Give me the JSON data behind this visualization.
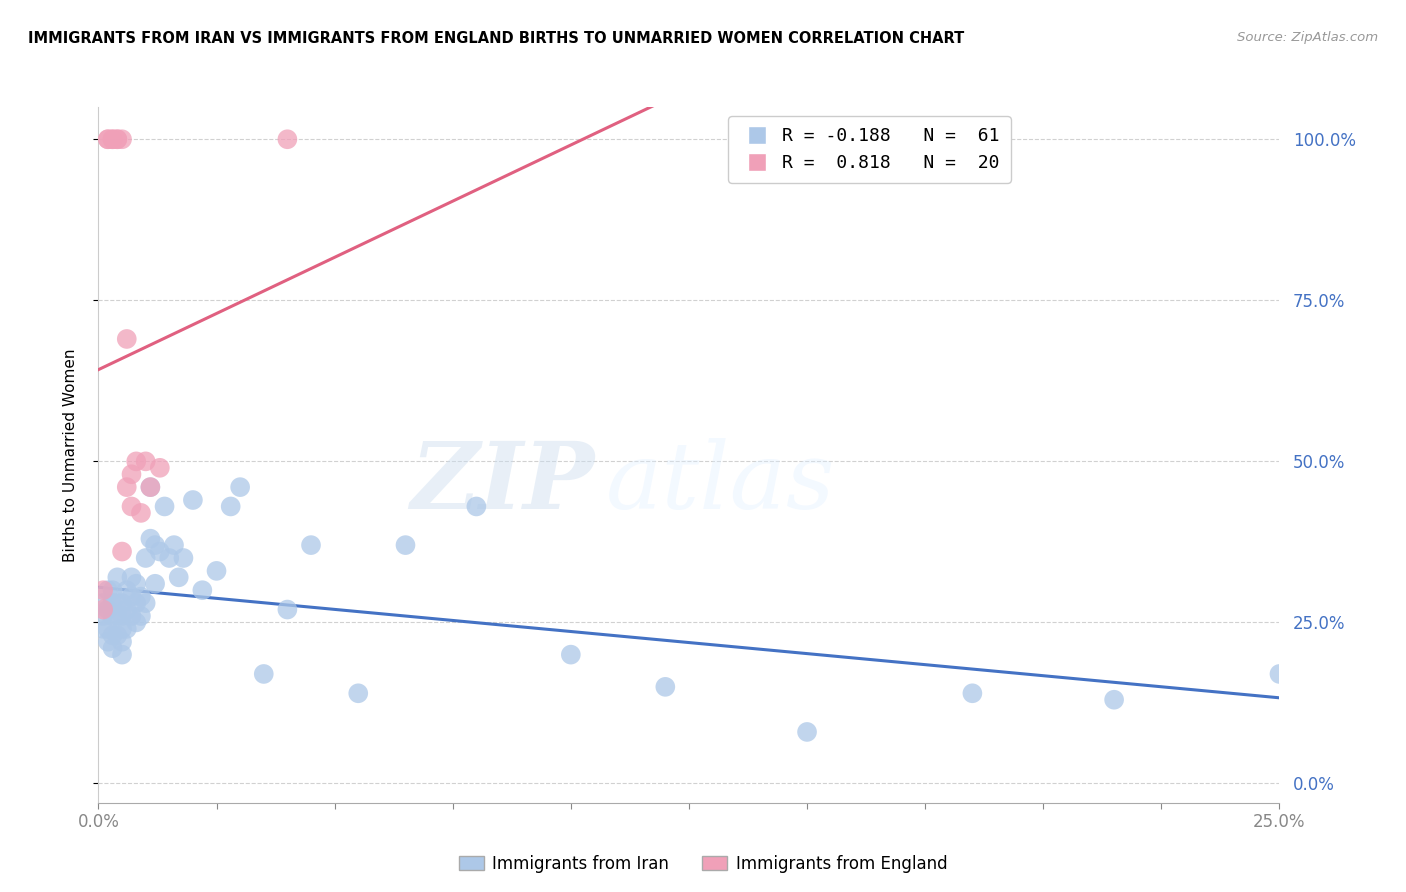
{
  "title": "IMMIGRANTS FROM IRAN VS IMMIGRANTS FROM ENGLAND BIRTHS TO UNMARRIED WOMEN CORRELATION CHART",
  "source": "Source: ZipAtlas.com",
  "ylabel": "Births to Unmarried Women",
  "xlim": [
    0.0,
    0.25
  ],
  "ylim": [
    -0.03,
    1.05
  ],
  "yticks": [
    0.0,
    0.25,
    0.5,
    0.75,
    1.0
  ],
  "ytick_labels": [
    "0.0%",
    "25.0%",
    "50.0%",
    "75.0%",
    "100.0%"
  ],
  "xtick_left_label": "0.0%",
  "xtick_right_label": "25.0%",
  "blue_color": "#adc8e8",
  "pink_color": "#f0a0b8",
  "blue_line_color": "#4472c4",
  "pink_line_color": "#e06080",
  "watermark_text": "ZIP",
  "watermark_text2": "atlas",
  "legend_line1": "R = -0.188   N =  61",
  "legend_line2": "R =  0.818   N =  20",
  "legend_label1": "Immigrants from Iran",
  "legend_label2": "Immigrants from England",
  "iran_x": [
    0.001,
    0.001,
    0.001,
    0.002,
    0.002,
    0.002,
    0.002,
    0.003,
    0.003,
    0.003,
    0.003,
    0.003,
    0.004,
    0.004,
    0.004,
    0.004,
    0.005,
    0.005,
    0.005,
    0.005,
    0.005,
    0.006,
    0.006,
    0.006,
    0.007,
    0.007,
    0.007,
    0.008,
    0.008,
    0.008,
    0.009,
    0.009,
    0.01,
    0.01,
    0.011,
    0.011,
    0.012,
    0.012,
    0.013,
    0.014,
    0.015,
    0.016,
    0.017,
    0.018,
    0.02,
    0.022,
    0.025,
    0.028,
    0.03,
    0.035,
    0.04,
    0.045,
    0.055,
    0.065,
    0.08,
    0.1,
    0.12,
    0.15,
    0.185,
    0.215,
    0.25
  ],
  "iran_y": [
    0.28,
    0.26,
    0.24,
    0.3,
    0.27,
    0.24,
    0.22,
    0.3,
    0.28,
    0.26,
    0.23,
    0.21,
    0.32,
    0.28,
    0.26,
    0.23,
    0.28,
    0.26,
    0.24,
    0.22,
    0.2,
    0.3,
    0.27,
    0.24,
    0.32,
    0.29,
    0.26,
    0.31,
    0.28,
    0.25,
    0.29,
    0.26,
    0.35,
    0.28,
    0.46,
    0.38,
    0.37,
    0.31,
    0.36,
    0.43,
    0.35,
    0.37,
    0.32,
    0.35,
    0.44,
    0.3,
    0.33,
    0.43,
    0.46,
    0.17,
    0.27,
    0.37,
    0.14,
    0.37,
    0.43,
    0.2,
    0.15,
    0.08,
    0.14,
    0.13,
    0.17
  ],
  "england_x": [
    0.001,
    0.001,
    0.002,
    0.002,
    0.003,
    0.003,
    0.004,
    0.004,
    0.005,
    0.005,
    0.006,
    0.006,
    0.007,
    0.007,
    0.008,
    0.009,
    0.01,
    0.011,
    0.013,
    0.04
  ],
  "england_y": [
    0.3,
    0.27,
    1.0,
    1.0,
    1.0,
    1.0,
    1.0,
    1.0,
    1.0,
    0.36,
    0.69,
    0.46,
    0.48,
    0.43,
    0.5,
    0.42,
    0.5,
    0.46,
    0.49,
    1.0
  ]
}
